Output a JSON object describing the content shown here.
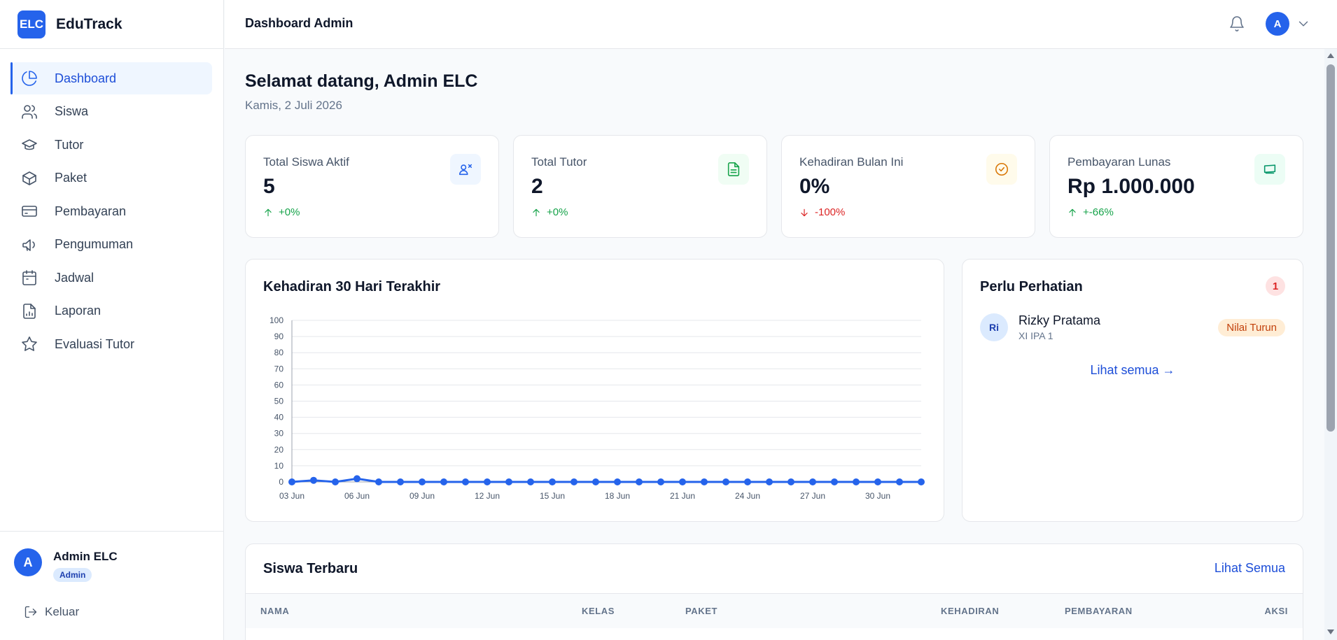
{
  "brand": {
    "logo_text": "ELC",
    "name": "EduTrack"
  },
  "sidebar": {
    "items": [
      {
        "label": "Dashboard",
        "icon": "pie-chart-icon",
        "active": true
      },
      {
        "label": "Siswa",
        "icon": "users-icon"
      },
      {
        "label": "Tutor",
        "icon": "graduation-cap-icon"
      },
      {
        "label": "Paket",
        "icon": "package-icon"
      },
      {
        "label": "Pembayaran",
        "icon": "credit-card-icon"
      },
      {
        "label": "Pengumuman",
        "icon": "megaphone-icon"
      },
      {
        "label": "Jadwal",
        "icon": "calendar-icon"
      },
      {
        "label": "Laporan",
        "icon": "file-chart-icon"
      },
      {
        "label": "Evaluasi Tutor",
        "icon": "star-icon"
      }
    ],
    "user": {
      "initial": "A",
      "name": "Admin ELC",
      "role": "Admin"
    },
    "logout_label": "Keluar"
  },
  "header": {
    "title": "Dashboard Admin",
    "avatar_initial": "A"
  },
  "main": {
    "welcome": "Selamat datang, Admin ELC",
    "date": "Kamis, 2 Juli 2026",
    "stats": [
      {
        "label": "Total Siswa Aktif",
        "value": "5",
        "delta": "+0%",
        "trend": "up",
        "icon": "users-icon",
        "color": "#2563eb",
        "bg": "#eff6ff"
      },
      {
        "label": "Total Tutor",
        "value": "2",
        "delta": "+0%",
        "trend": "up",
        "icon": "document-icon",
        "color": "#16a34a",
        "bg": "#f0fdf4"
      },
      {
        "label": "Kehadiran Bulan Ini",
        "value": "0%",
        "delta": "-100%",
        "trend": "down",
        "icon": "check-circle-icon",
        "color": "#d97706",
        "bg": "#fffbeb"
      },
      {
        "label": "Pembayaran Lunas",
        "value": "Rp 1.000.000",
        "delta": "+-66%",
        "trend": "up",
        "icon": "banknote-icon",
        "color": "#059669",
        "bg": "#ecfdf5"
      }
    ],
    "attention": {
      "title": "Perlu Perhatian",
      "count": "1",
      "items": [
        {
          "initials": "Ri",
          "name": "Rizky Pratama",
          "class": "XI IPA 1",
          "badge": "Nilai Turun"
        }
      ],
      "link": "Lihat semua →"
    },
    "recent_students": {
      "title": "Siswa Terbaru",
      "link": "Lihat Semua",
      "columns": [
        "NAMA",
        "KELAS",
        "PAKET",
        "KEHADIRAN",
        "PEMBAYARAN",
        "AKSI"
      ]
    }
  },
  "chart_data": {
    "type": "line",
    "title": "Kehadiran 30 Hari Terakhir",
    "x": [
      "03 Jun",
      "04 Jun",
      "05 Jun",
      "06 Jun",
      "07 Jun",
      "08 Jun",
      "09 Jun",
      "10 Jun",
      "11 Jun",
      "12 Jun",
      "13 Jun",
      "14 Jun",
      "15 Jun",
      "16 Jun",
      "17 Jun",
      "18 Jun",
      "19 Jun",
      "20 Jun",
      "21 Jun",
      "22 Jun",
      "23 Jun",
      "24 Jun",
      "25 Jun",
      "26 Jun",
      "27 Jun",
      "28 Jun",
      "29 Jun",
      "30 Jun",
      "01 Jul",
      "02 Jul"
    ],
    "tick_labels": [
      "03 Jun",
      "06 Jun",
      "09 Jun",
      "12 Jun",
      "15 Jun",
      "18 Jun",
      "21 Jun",
      "24 Jun",
      "27 Jun",
      "30 Jun"
    ],
    "values": [
      0,
      1,
      0,
      2,
      0,
      0,
      0,
      0,
      0,
      0,
      0,
      0,
      0,
      0,
      0,
      0,
      0,
      0,
      0,
      0,
      0,
      0,
      0,
      0,
      0,
      0,
      0,
      0,
      0,
      0
    ],
    "ylim": [
      0,
      100
    ],
    "yticks": [
      0,
      10,
      20,
      30,
      40,
      50,
      60,
      70,
      80,
      90,
      100
    ],
    "grid": true,
    "color": "#2563eb"
  }
}
